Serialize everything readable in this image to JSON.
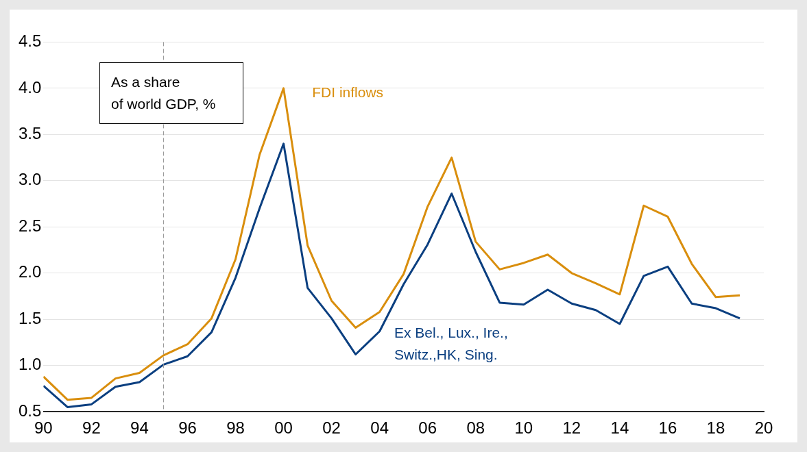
{
  "chart_data": {
    "type": "line",
    "annotations": [
      "As a share\nof world GDP, %"
    ],
    "x": [
      1990,
      1991,
      1992,
      1993,
      1994,
      1995,
      1996,
      1997,
      1998,
      1999,
      2000,
      2001,
      2002,
      2003,
      2004,
      2005,
      2006,
      2007,
      2008,
      2009,
      2010,
      2011,
      2012,
      2013,
      2014,
      2015,
      2016,
      2017,
      2018,
      2019
    ],
    "series": [
      {
        "name": "FDI inflows",
        "color": "#d98e0d",
        "values": [
          0.88,
          0.63,
          0.65,
          0.86,
          0.92,
          1.11,
          1.23,
          1.51,
          2.15,
          3.28,
          4.0,
          2.3,
          1.7,
          1.41,
          1.58,
          1.99,
          2.72,
          3.25,
          2.34,
          2.04,
          2.11,
          2.2,
          2.0,
          1.89,
          1.77,
          2.73,
          2.61,
          2.1,
          1.74,
          1.76
        ]
      },
      {
        "name": "Ex Bel., Lux., Ire., Switz.,HK, Sing.",
        "color": "#0b3f80",
        "values": [
          0.78,
          0.55,
          0.58,
          0.77,
          0.82,
          1.01,
          1.1,
          1.36,
          1.95,
          2.7,
          3.4,
          1.84,
          1.51,
          1.12,
          1.37,
          1.88,
          2.31,
          2.86,
          2.23,
          1.68,
          1.66,
          1.82,
          1.67,
          1.6,
          1.45,
          1.97,
          2.07,
          1.67,
          1.62,
          1.51
        ]
      }
    ],
    "xlim": [
      1990,
      2020
    ],
    "xticks": [
      {
        "value": 1990,
        "label": "90"
      },
      {
        "value": 1992,
        "label": "92"
      },
      {
        "value": 1994,
        "label": "94"
      },
      {
        "value": 1996,
        "label": "96"
      },
      {
        "value": 1998,
        "label": "98"
      },
      {
        "value": 2000,
        "label": "00"
      },
      {
        "value": 2002,
        "label": "02"
      },
      {
        "value": 2004,
        "label": "04"
      },
      {
        "value": 2006,
        "label": "06"
      },
      {
        "value": 2008,
        "label": "08"
      },
      {
        "value": 2010,
        "label": "10"
      },
      {
        "value": 2012,
        "label": "12"
      },
      {
        "value": 2014,
        "label": "14"
      },
      {
        "value": 2016,
        "label": "16"
      },
      {
        "value": 2018,
        "label": "18"
      },
      {
        "value": 2020,
        "label": "20"
      }
    ],
    "ylim": [
      0.5,
      4.5
    ],
    "yticks": [
      0.5,
      {
        "value": 1,
        "label": "1.0"
      },
      1.5,
      {
        "value": 2,
        "label": "2.0"
      },
      2.5,
      {
        "value": 3,
        "label": "3.0"
      },
      3.5,
      {
        "value": 4,
        "label": "4.0"
      },
      4.5
    ],
    "grid": "y",
    "legend": false,
    "marker": "none",
    "line_style": "solid",
    "ref_lines": [
      {
        "axis": "x",
        "value": 1995,
        "color": "#999999",
        "line_style": "dashed"
      }
    ]
  }
}
